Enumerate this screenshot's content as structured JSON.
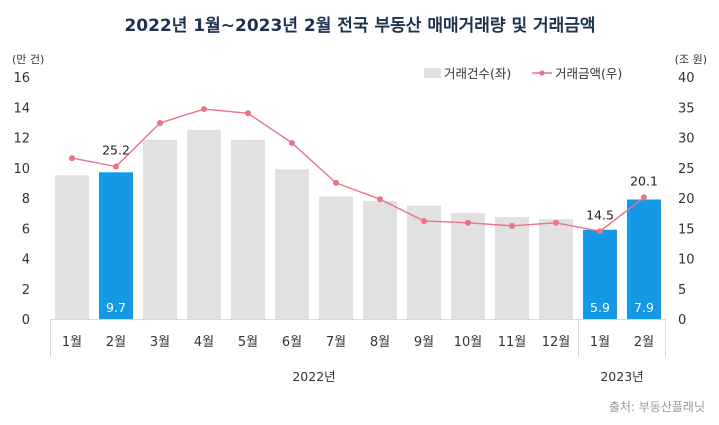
{
  "chart_data": {
    "type": "bar+line",
    "title": "2022년 1월~2023년 2월 전국 부동산 매매거래량 및 거래금액",
    "y_left_unit": "(만 건)",
    "y_right_unit": "(조 원)",
    "y_left_lim": [
      0,
      16
    ],
    "y_left_ticks": [
      0,
      2,
      4,
      6,
      8,
      10,
      12,
      14,
      16
    ],
    "y_right_lim": [
      0,
      40
    ],
    "y_right_ticks": [
      0,
      5,
      10,
      15,
      20,
      25,
      30,
      35,
      40
    ],
    "categories": [
      "1월",
      "2월",
      "3월",
      "4월",
      "5월",
      "6월",
      "7월",
      "8월",
      "9월",
      "10월",
      "11월",
      "12월",
      "1월",
      "2월"
    ],
    "groups": [
      {
        "label": "2022년",
        "count": 12
      },
      {
        "label": "2023년",
        "count": 2
      }
    ],
    "series": [
      {
        "name": "거래건수(좌)",
        "type": "bar",
        "axis": "left",
        "color": "#e1e1e1",
        "highlight_color": "#1499e6",
        "values": [
          9.5,
          9.7,
          11.85,
          12.5,
          11.85,
          9.9,
          8.1,
          7.8,
          7.5,
          7.0,
          6.75,
          6.6,
          5.9,
          7.9
        ],
        "highlighted": [
          false,
          true,
          false,
          false,
          false,
          false,
          false,
          false,
          false,
          false,
          false,
          false,
          true,
          true
        ],
        "labels": [
          "",
          "9.7",
          "",
          "",
          "",
          "",
          "",
          "",
          "",
          "",
          "",
          "",
          "5.9",
          "7.9"
        ]
      },
      {
        "name": "거래금액(우)",
        "type": "line",
        "axis": "right",
        "color": "#ec7285",
        "values": [
          26.6,
          25.2,
          32.4,
          34.7,
          34.0,
          29.1,
          22.5,
          19.8,
          16.2,
          15.9,
          15.4,
          15.9,
          14.5,
          20.1
        ],
        "labels": [
          "",
          "25.2",
          "",
          "",
          "",
          "",
          "",
          "",
          "",
          "",
          "",
          "",
          "14.5",
          "20.1"
        ]
      }
    ],
    "legend_position": "top-right",
    "grid": false,
    "source": "출처: 부동산플래닛"
  }
}
